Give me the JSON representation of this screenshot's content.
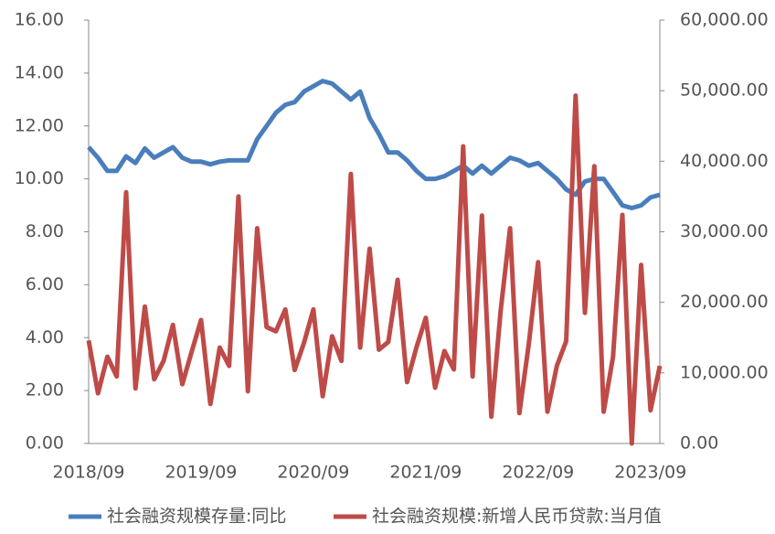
{
  "chart_data": {
    "type": "line",
    "categories": [
      "2018/09",
      null,
      null,
      null,
      null,
      null,
      null,
      null,
      null,
      null,
      null,
      null,
      "2019/09",
      null,
      null,
      null,
      null,
      null,
      null,
      null,
      null,
      null,
      null,
      null,
      "2020/09",
      null,
      null,
      null,
      null,
      null,
      null,
      null,
      null,
      null,
      null,
      null,
      "2021/09",
      null,
      null,
      null,
      null,
      null,
      null,
      null,
      null,
      null,
      null,
      null,
      "2022/09",
      null,
      null,
      null,
      null,
      null,
      null,
      null,
      null,
      null,
      null,
      null,
      "2023/09",
      null
    ],
    "series": [
      {
        "name": "社会融资规模存量:同比",
        "color": "#4a7ebb",
        "axis": "y",
        "values": [
          11.2,
          10.8,
          10.3,
          10.3,
          10.85,
          10.6,
          11.15,
          10.8,
          11.0,
          11.2,
          10.8,
          10.65,
          10.65,
          10.55,
          10.65,
          10.7,
          10.7,
          10.7,
          11.5,
          12.0,
          12.5,
          12.8,
          12.9,
          13.3,
          13.5,
          13.7,
          13.6,
          13.3,
          13.0,
          13.3,
          12.3,
          11.7,
          11.0,
          11.0,
          10.7,
          10.3,
          10.0,
          10.0,
          10.1,
          10.3,
          10.5,
          10.2,
          10.5,
          10.2,
          10.5,
          10.8,
          10.7,
          10.5,
          10.6,
          10.3,
          10.0,
          9.6,
          9.4,
          9.9,
          10.0,
          10.0,
          9.5,
          9.0,
          8.9,
          9.0,
          9.3,
          9.4
        ]
      },
      {
        "name": "社会融资规模:新增人民币贷款:当月值",
        "color": "#be4b48",
        "axis": "y2",
        "values": [
          14600,
          7100,
          12300,
          9500,
          35600,
          7800,
          19400,
          9100,
          11700,
          16800,
          8400,
          13000,
          17500,
          5600,
          13600,
          11000,
          35000,
          7400,
          30500,
          16500,
          15900,
          19000,
          10400,
          14300,
          19000,
          6700,
          15200,
          11700,
          38200,
          13600,
          27600,
          13300,
          14400,
          23200,
          8700,
          13600,
          17800,
          7900,
          13100,
          10500,
          42100,
          9500,
          32300,
          3800,
          18800,
          30500,
          4300,
          14100,
          25700,
          4500,
          11000,
          14500,
          49300,
          18500,
          39300,
          4500,
          12300,
          32400,
          0,
          25300,
          4700,
          11000
        ]
      }
    ],
    "ylim": [
      0,
      16
    ],
    "yticks": [
      {
        "value": 0,
        "label": "0.00"
      },
      {
        "value": 2,
        "label": "2.00"
      },
      {
        "value": 4,
        "label": "4.00"
      },
      {
        "value": 6,
        "label": "6.00"
      },
      {
        "value": 8,
        "label": "8.00"
      },
      {
        "value": 10,
        "label": "10.00"
      },
      {
        "value": 12,
        "label": "12.00"
      },
      {
        "value": 14,
        "label": "14.00"
      },
      {
        "value": 16,
        "label": "16.00"
      }
    ],
    "y2lim": [
      0,
      60000
    ],
    "y2ticks": [
      {
        "value": 0,
        "label": "0.00"
      },
      {
        "value": 10000,
        "label": "10,000.00"
      },
      {
        "value": 20000,
        "label": "20,000.00"
      },
      {
        "value": 30000,
        "label": "30,000.00"
      },
      {
        "value": 40000,
        "label": "40,000.00"
      },
      {
        "value": 50000,
        "label": "50,000.00"
      },
      {
        "value": 60000,
        "label": "60,000.00"
      }
    ],
    "grid": false,
    "legend": "bottom"
  }
}
